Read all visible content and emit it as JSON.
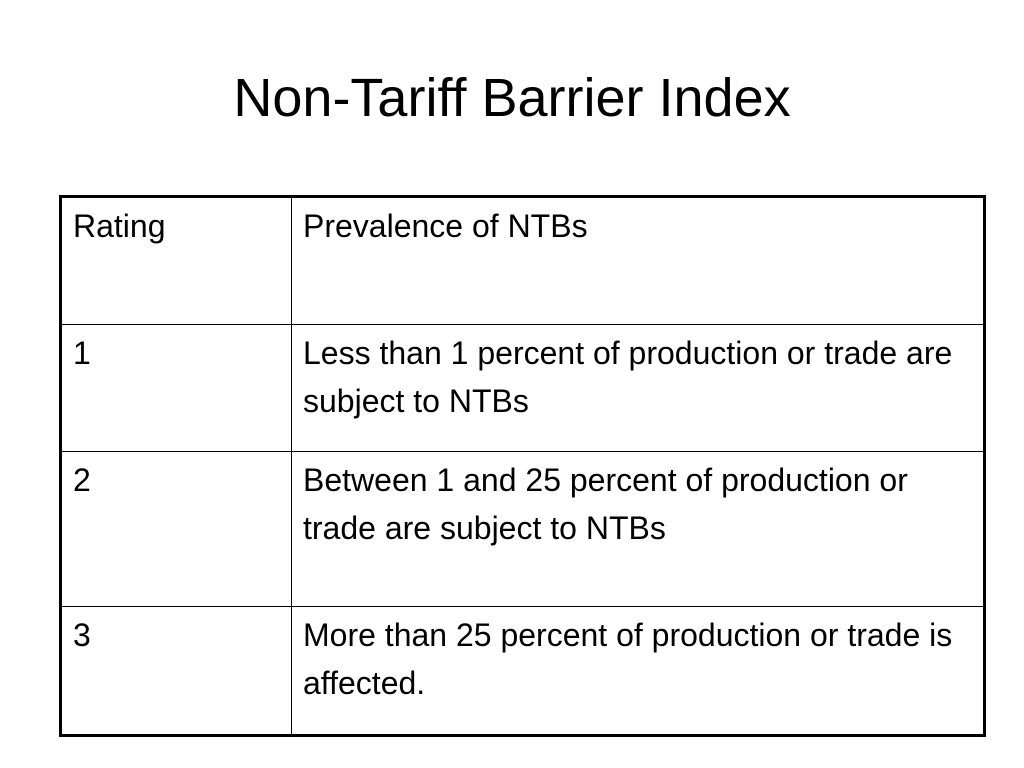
{
  "slide": {
    "title": "Non-Tariff Barrier Index"
  },
  "table": {
    "headers": [
      "Rating",
      "Prevalence of NTBs"
    ],
    "rows": [
      {
        "rating": "1",
        "prevalence": "Less than 1 percent of production or trade are subject to NTBs"
      },
      {
        "rating": "2",
        "prevalence": "Between 1 and 25 percent of production or trade are subject to NTBs"
      },
      {
        "rating": "3",
        "prevalence": "More than 25 percent of production or trade is affected."
      }
    ]
  }
}
